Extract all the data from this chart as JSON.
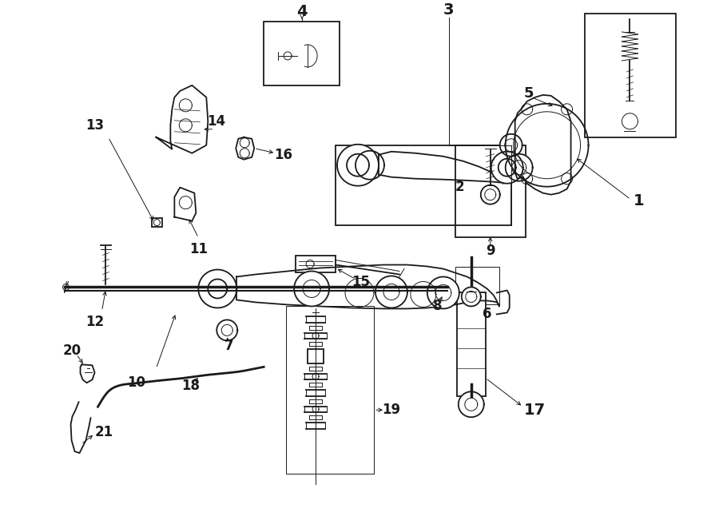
{
  "bg_color": "#ffffff",
  "line_color": "#1a1a1a",
  "fig_width": 9.0,
  "fig_height": 6.61,
  "dpi": 100,
  "lw_main": 1.3,
  "lw_thin": 0.7,
  "lw_thick": 2.0
}
